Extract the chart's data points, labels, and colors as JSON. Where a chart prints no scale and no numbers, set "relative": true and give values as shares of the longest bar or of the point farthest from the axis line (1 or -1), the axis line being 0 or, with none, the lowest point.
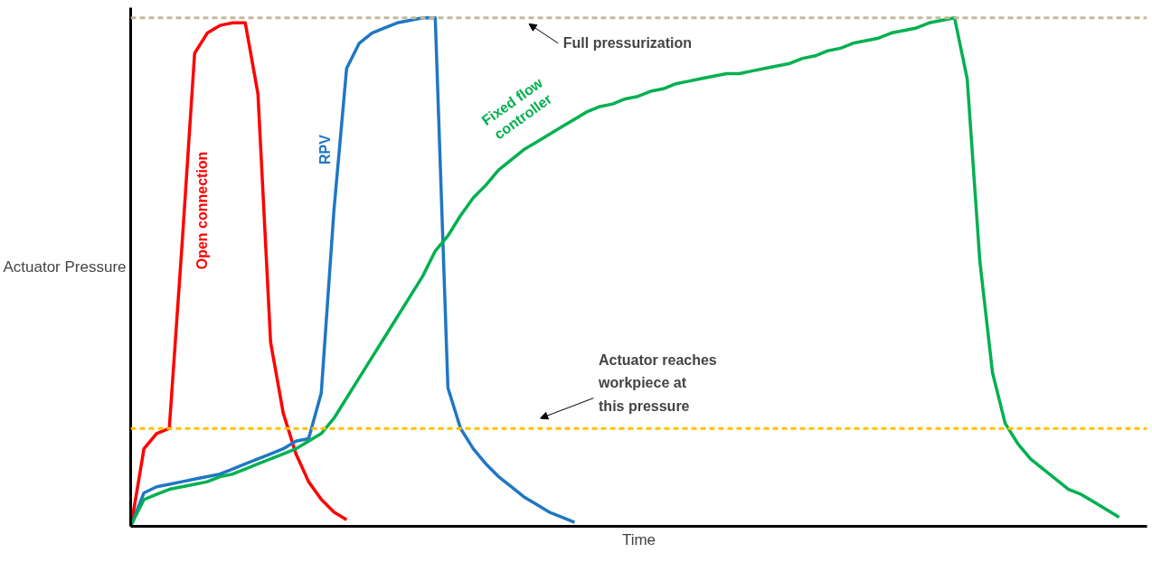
{
  "chart_data": {
    "type": "line",
    "relative": true,
    "xlabel": "Time",
    "ylabel": "Actuator Pressure",
    "marker": "none",
    "line_style": "solid",
    "categories": [
      null,
      null,
      null,
      null,
      null,
      null,
      null,
      null,
      null,
      null,
      null,
      null,
      null,
      null,
      null,
      null,
      null,
      null,
      null,
      null,
      null,
      null,
      null,
      null,
      null,
      null,
      null,
      null,
      null,
      null,
      null,
      null,
      null,
      null,
      null,
      null,
      null,
      null,
      null,
      null,
      null,
      null,
      null,
      null,
      null,
      null,
      null,
      null,
      null,
      null,
      null,
      null,
      null,
      null,
      null,
      null,
      null,
      null,
      null,
      null,
      null,
      null,
      null,
      null,
      null,
      null,
      null,
      null,
      null,
      null,
      null,
      null,
      null,
      null,
      null,
      null,
      null,
      null,
      null,
      null
    ],
    "series": [
      {
        "name": "Open connection",
        "color": "#ff0000",
        "values": [
          0,
          0.15,
          0.18,
          0.19,
          0.55,
          0.93,
          0.97,
          0.985,
          0.99,
          0.99,
          0.85,
          0.36,
          0.22,
          0.14,
          0.085,
          0.05,
          0.025,
          0.01,
          null,
          null,
          null,
          null,
          null,
          null,
          null,
          null,
          null,
          null,
          null,
          null,
          null,
          null,
          null,
          null,
          null,
          null,
          null,
          null,
          null,
          null,
          null,
          null,
          null,
          null,
          null,
          null,
          null,
          null,
          null,
          null,
          null,
          null,
          null,
          null,
          null,
          null,
          null,
          null,
          null,
          null,
          null,
          null,
          null,
          null,
          null,
          null,
          null,
          null,
          null,
          null,
          null,
          null,
          null,
          null,
          null,
          null,
          null,
          null,
          null,
          null
        ]
      },
      {
        "name": "RPV",
        "color": "#1f77c4",
        "values": [
          0,
          0.063,
          0.075,
          0.08,
          0.085,
          0.09,
          0.095,
          0.1,
          0.11,
          0.12,
          0.13,
          0.14,
          0.15,
          0.165,
          0.17,
          0.26,
          0.62,
          0.9,
          0.95,
          0.97,
          0.98,
          0.99,
          0.995,
          1.0,
          1.0,
          0.27,
          0.19,
          0.15,
          0.12,
          0.095,
          0.075,
          0.055,
          0.04,
          0.025,
          0.015,
          0.005,
          null,
          null,
          null,
          null,
          null,
          null,
          null,
          null,
          null,
          null,
          null,
          null,
          null,
          null,
          null,
          null,
          null,
          null,
          null,
          null,
          null,
          null,
          null,
          null,
          null,
          null,
          null,
          null,
          null,
          null,
          null,
          null,
          null,
          null,
          null,
          null,
          null,
          null,
          null,
          null,
          null,
          null,
          null,
          null
        ]
      },
      {
        "name": "Fixed flow controller",
        "color": "#00b050",
        "values": [
          0,
          0.05,
          0.06,
          0.07,
          0.075,
          0.08,
          0.085,
          0.095,
          0.1,
          0.11,
          0.12,
          0.13,
          0.14,
          0.15,
          0.165,
          0.18,
          0.21,
          0.25,
          0.29,
          0.33,
          0.37,
          0.41,
          0.45,
          0.49,
          0.54,
          0.57,
          0.61,
          0.645,
          0.67,
          0.7,
          0.72,
          0.74,
          0.755,
          0.77,
          0.785,
          0.8,
          0.815,
          0.825,
          0.83,
          0.84,
          0.845,
          0.855,
          0.86,
          0.87,
          0.875,
          0.88,
          0.885,
          0.89,
          0.89,
          0.895,
          0.9,
          0.905,
          0.91,
          0.92,
          0.925,
          0.935,
          0.94,
          0.95,
          0.955,
          0.96,
          0.97,
          0.975,
          0.98,
          0.99,
          0.995,
          1.0,
          0.88,
          0.52,
          0.3,
          0.2,
          0.16,
          0.13,
          0.11,
          0.09,
          0.07,
          0.06,
          0.045,
          0.03,
          0.015,
          null
        ]
      }
    ],
    "ref_lines": [
      {
        "axis": "y",
        "value": 1.0,
        "label": "Full pressurization",
        "color": "#c4b99a",
        "line_style": "dashed"
      },
      {
        "axis": "y",
        "value": 0.19,
        "label": "Actuator reaches workpiece at this pressure",
        "color": "#ffc000",
        "line_style": "dashed"
      }
    ]
  }
}
